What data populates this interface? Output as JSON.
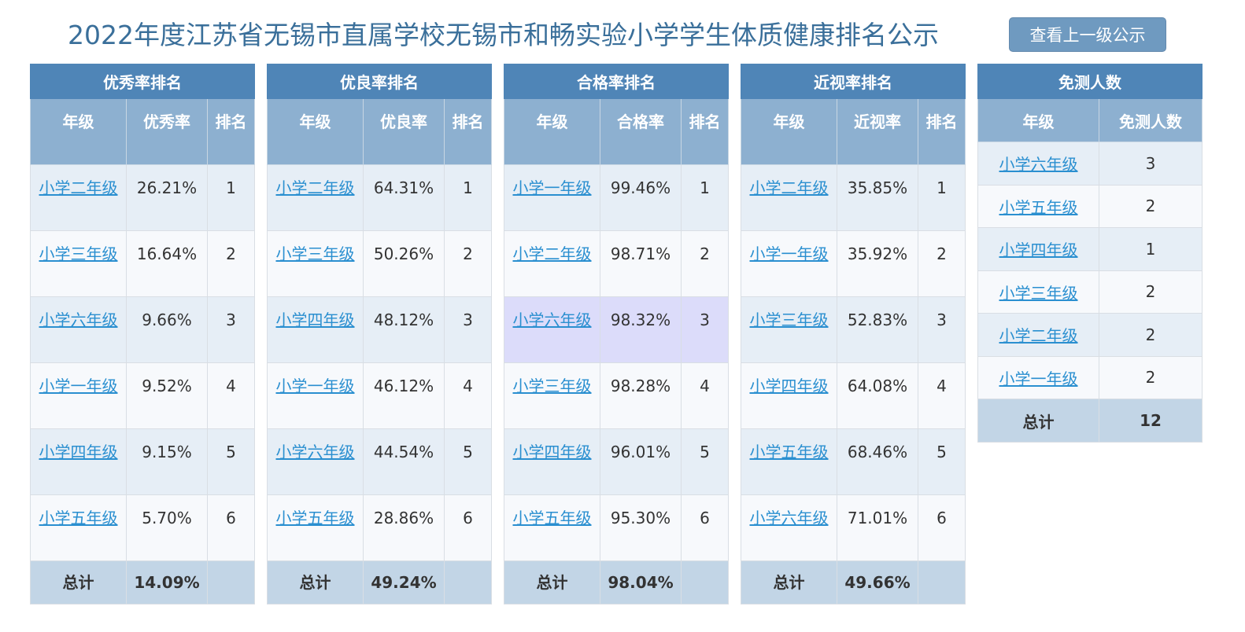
{
  "header": {
    "title": "2022年度江苏省无锡市直属学校无锡市和畅实验小学学生体质健康排名公示",
    "button_label": "查看上一级公示"
  },
  "colors": {
    "title": "#3a6f9a",
    "caption_bg": "#4f85b7",
    "header_bg": "#8db0d0",
    "row_odd": "#e6eef6",
    "row_even": "#f7f9fc",
    "row_highlight": "#dcdcfa",
    "total_bg": "#c2d5e6",
    "link": "#2a8fd0",
    "button_bg": "#6f9ac0"
  },
  "tables": [
    {
      "caption": "优秀率排名",
      "col_grade": "年级",
      "col_rate": "优秀率",
      "col_rank": "排名",
      "rows": [
        {
          "grade": "小学二年级",
          "rate": "26.21%",
          "rank": "1"
        },
        {
          "grade": "小学三年级",
          "rate": "16.64%",
          "rank": "2"
        },
        {
          "grade": "小学六年级",
          "rate": "9.66%",
          "rank": "3"
        },
        {
          "grade": "小学一年级",
          "rate": "9.52%",
          "rank": "4"
        },
        {
          "grade": "小学四年级",
          "rate": "9.15%",
          "rank": "5"
        },
        {
          "grade": "小学五年级",
          "rate": "5.70%",
          "rank": "6"
        }
      ],
      "total_label": "总计",
      "total_value": "14.09%"
    },
    {
      "caption": "优良率排名",
      "col_grade": "年级",
      "col_rate": "优良率",
      "col_rank": "排名",
      "rows": [
        {
          "grade": "小学二年级",
          "rate": "64.31%",
          "rank": "1"
        },
        {
          "grade": "小学三年级",
          "rate": "50.26%",
          "rank": "2"
        },
        {
          "grade": "小学四年级",
          "rate": "48.12%",
          "rank": "3"
        },
        {
          "grade": "小学一年级",
          "rate": "46.12%",
          "rank": "4"
        },
        {
          "grade": "小学六年级",
          "rate": "44.54%",
          "rank": "5"
        },
        {
          "grade": "小学五年级",
          "rate": "28.86%",
          "rank": "6"
        }
      ],
      "total_label": "总计",
      "total_value": "49.24%"
    },
    {
      "caption": "合格率排名",
      "col_grade": "年级",
      "col_rate": "合格率",
      "col_rank": "排名",
      "rows": [
        {
          "grade": "小学一年级",
          "rate": "99.46%",
          "rank": "1"
        },
        {
          "grade": "小学二年级",
          "rate": "98.71%",
          "rank": "2"
        },
        {
          "grade": "小学六年级",
          "rate": "98.32%",
          "rank": "3"
        },
        {
          "grade": "小学三年级",
          "rate": "98.28%",
          "rank": "4"
        },
        {
          "grade": "小学四年级",
          "rate": "96.01%",
          "rank": "5"
        },
        {
          "grade": "小学五年级",
          "rate": "95.30%",
          "rank": "6"
        }
      ],
      "total_label": "总计",
      "total_value": "98.04%"
    },
    {
      "caption": "近视率排名",
      "col_grade": "年级",
      "col_rate": "近视率",
      "col_rank": "排名",
      "rows": [
        {
          "grade": "小学二年级",
          "rate": "35.85%",
          "rank": "1"
        },
        {
          "grade": "小学一年级",
          "rate": "35.92%",
          "rank": "2"
        },
        {
          "grade": "小学三年级",
          "rate": "52.83%",
          "rank": "3"
        },
        {
          "grade": "小学四年级",
          "rate": "64.08%",
          "rank": "4"
        },
        {
          "grade": "小学五年级",
          "rate": "68.46%",
          "rank": "5"
        },
        {
          "grade": "小学六年级",
          "rate": "71.01%",
          "rank": "6"
        }
      ],
      "total_label": "总计",
      "total_value": "49.66%"
    }
  ],
  "exempt": {
    "caption": "免测人数",
    "col_grade": "年级",
    "col_count": "免测人数",
    "rows": [
      {
        "grade": "小学六年级",
        "count": "3"
      },
      {
        "grade": "小学五年级",
        "count": "2"
      },
      {
        "grade": "小学四年级",
        "count": "1"
      },
      {
        "grade": "小学三年级",
        "count": "2"
      },
      {
        "grade": "小学二年级",
        "count": "2"
      },
      {
        "grade": "小学一年级",
        "count": "2"
      }
    ],
    "total_label": "总计",
    "total_value": "12"
  }
}
